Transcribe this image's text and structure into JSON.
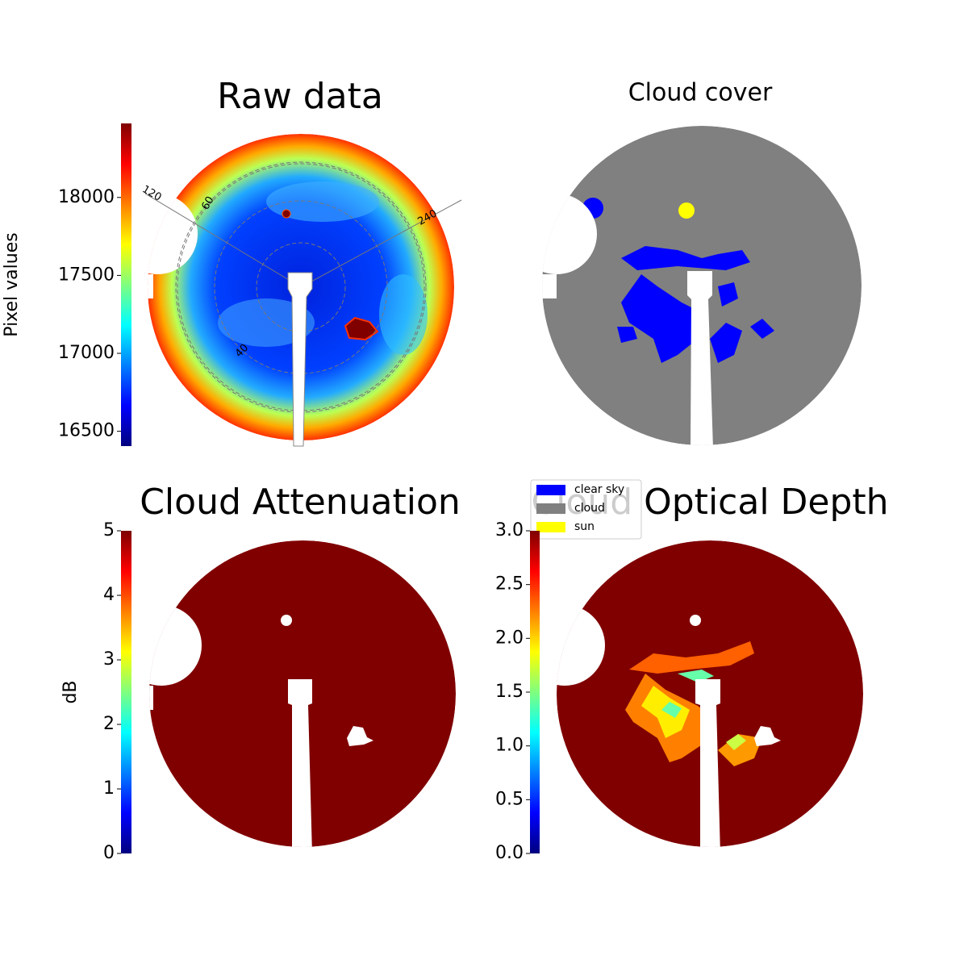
{
  "chart_data": [
    {
      "type": "image",
      "title": "Raw data",
      "colorbar_label": "Pixel values",
      "colormap": "jet",
      "ylim": [
        16405,
        18475
      ],
      "yticks": [
        16500,
        17000,
        17500,
        18000
      ],
      "annotations": [
        "120",
        "60",
        "240",
        "40"
      ]
    },
    {
      "type": "image",
      "title": "Cloud cover",
      "legend": [
        {
          "name": "clear sky",
          "color": "#0000ff"
        },
        {
          "name": "cloud",
          "color": "#808080"
        },
        {
          "name": "sun",
          "color": "#ffff00"
        }
      ]
    },
    {
      "type": "image",
      "title": "Cloud Attenuation",
      "colorbar_label": "dB",
      "colormap": "jet",
      "ylim": [
        0,
        5
      ],
      "yticks": [
        0,
        1,
        2,
        3,
        4,
        5
      ]
    },
    {
      "type": "image",
      "title": "Cloud Optical Depth",
      "colormap": "jet",
      "ylim": [
        0,
        3
      ],
      "yticks": [
        {
          "value": 0,
          "label": "0.0"
        },
        0.5,
        {
          "value": 1,
          "label": "1.0"
        },
        1.5,
        {
          "value": 2,
          "label": "2.0"
        },
        2.5,
        {
          "value": 3,
          "label": "3.0"
        }
      ]
    }
  ]
}
